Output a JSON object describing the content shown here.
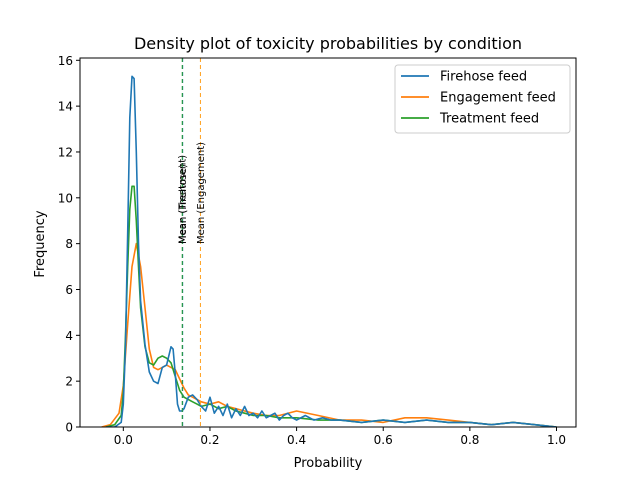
{
  "chart_data": {
    "type": "line",
    "title": "Density plot of toxicity probabilities by condition",
    "xlabel": "Probability",
    "ylabel": "Frequency",
    "xlim": [
      -0.1,
      1.045
    ],
    "ylim": [
      0,
      16.1
    ],
    "xticks": [
      0.0,
      0.2,
      0.4,
      0.6,
      0.8,
      1.0
    ],
    "xtick_labels": [
      "0.0",
      "0.2",
      "0.4",
      "0.6",
      "0.8",
      "1.0"
    ],
    "yticks": [
      0,
      2,
      4,
      6,
      8,
      10,
      12,
      14,
      16
    ],
    "ytick_labels": [
      "0",
      "2",
      "4",
      "6",
      "8",
      "10",
      "12",
      "14",
      "16"
    ],
    "grid": false,
    "legend_position": "top-right",
    "series": [
      {
        "name": "Firehose feed",
        "color": "#1f77b4",
        "x": [
          -0.04,
          -0.02,
          -0.005,
          0.0,
          0.005,
          0.01,
          0.015,
          0.02,
          0.025,
          0.03,
          0.035,
          0.04,
          0.05,
          0.06,
          0.07,
          0.08,
          0.09,
          0.1,
          0.11,
          0.115,
          0.12,
          0.125,
          0.13,
          0.135,
          0.14,
          0.15,
          0.16,
          0.17,
          0.18,
          0.19,
          0.2,
          0.21,
          0.22,
          0.23,
          0.24,
          0.25,
          0.26,
          0.27,
          0.28,
          0.29,
          0.3,
          0.31,
          0.32,
          0.33,
          0.34,
          0.35,
          0.36,
          0.37,
          0.38,
          0.39,
          0.4,
          0.42,
          0.44,
          0.46,
          0.48,
          0.5,
          0.55,
          0.6,
          0.65,
          0.7,
          0.75,
          0.8,
          0.85,
          0.9,
          0.95,
          1.0
        ],
        "y": [
          0.0,
          0.0,
          0.2,
          1.0,
          3.5,
          8.5,
          13.5,
          15.3,
          15.2,
          12.0,
          8.0,
          5.5,
          3.6,
          2.4,
          2.0,
          1.9,
          2.6,
          2.7,
          3.5,
          3.4,
          2.3,
          1.0,
          0.7,
          0.7,
          0.8,
          1.3,
          1.4,
          1.2,
          0.9,
          0.7,
          1.3,
          0.6,
          0.9,
          0.5,
          1.0,
          0.4,
          0.8,
          0.5,
          0.9,
          0.5,
          0.6,
          0.4,
          0.7,
          0.4,
          0.5,
          0.6,
          0.3,
          0.5,
          0.6,
          0.4,
          0.3,
          0.5,
          0.3,
          0.4,
          0.3,
          0.3,
          0.2,
          0.3,
          0.2,
          0.3,
          0.2,
          0.2,
          0.1,
          0.2,
          0.1,
          0.0
        ]
      },
      {
        "name": "Engagement feed",
        "color": "#ff7f0e",
        "x": [
          -0.05,
          -0.03,
          -0.01,
          0.0,
          0.01,
          0.02,
          0.03,
          0.04,
          0.05,
          0.06,
          0.07,
          0.08,
          0.09,
          0.1,
          0.11,
          0.12,
          0.13,
          0.14,
          0.15,
          0.16,
          0.17,
          0.18,
          0.2,
          0.22,
          0.24,
          0.26,
          0.28,
          0.3,
          0.33,
          0.36,
          0.4,
          0.45,
          0.5,
          0.55,
          0.6,
          0.65,
          0.7,
          0.75,
          0.8,
          0.85,
          0.9,
          0.95,
          1.0
        ],
        "y": [
          0.0,
          0.1,
          0.6,
          1.8,
          4.5,
          7.0,
          8.0,
          7.0,
          5.2,
          3.4,
          2.6,
          2.5,
          2.6,
          2.7,
          2.6,
          2.5,
          2.1,
          1.7,
          1.4,
          1.3,
          1.2,
          1.1,
          1.0,
          1.1,
          0.9,
          0.8,
          0.7,
          0.6,
          0.5,
          0.5,
          0.7,
          0.5,
          0.3,
          0.3,
          0.2,
          0.4,
          0.4,
          0.3,
          0.2,
          0.1,
          0.2,
          0.1,
          0.0
        ]
      },
      {
        "name": "Treatment feed",
        "color": "#2ca02c",
        "x": [
          -0.04,
          -0.02,
          -0.005,
          0.0,
          0.005,
          0.01,
          0.015,
          0.02,
          0.025,
          0.03,
          0.035,
          0.04,
          0.05,
          0.06,
          0.07,
          0.08,
          0.09,
          0.1,
          0.11,
          0.12,
          0.13,
          0.14,
          0.15,
          0.16,
          0.17,
          0.18,
          0.2,
          0.22,
          0.24,
          0.26,
          0.28,
          0.3,
          0.33,
          0.36,
          0.4,
          0.45,
          0.5,
          0.55,
          0.6,
          0.65,
          0.7,
          0.75,
          0.8,
          0.85,
          0.9,
          0.95,
          1.0
        ],
        "y": [
          0.0,
          0.1,
          0.5,
          1.5,
          4.0,
          7.0,
          9.5,
          10.5,
          10.5,
          9.0,
          7.0,
          5.2,
          3.5,
          2.8,
          2.7,
          3.0,
          3.1,
          3.0,
          2.8,
          2.2,
          1.6,
          1.3,
          1.2,
          1.1,
          1.0,
          0.9,
          1.0,
          0.8,
          0.9,
          0.7,
          0.6,
          0.5,
          0.5,
          0.4,
          0.4,
          0.3,
          0.3,
          0.2,
          0.3,
          0.2,
          0.3,
          0.2,
          0.2,
          0.1,
          0.2,
          0.1,
          0.0
        ]
      }
    ],
    "vlines": [
      {
        "x": 0.137,
        "color": "#1f77b4",
        "label": "Mean (Firehose)"
      },
      {
        "x": 0.178,
        "color": "#ff9f1c",
        "label": "Mean (Engagement)"
      },
      {
        "x": 0.136,
        "color": "#2ca02c",
        "label": "Mean (Treatment)"
      }
    ]
  }
}
